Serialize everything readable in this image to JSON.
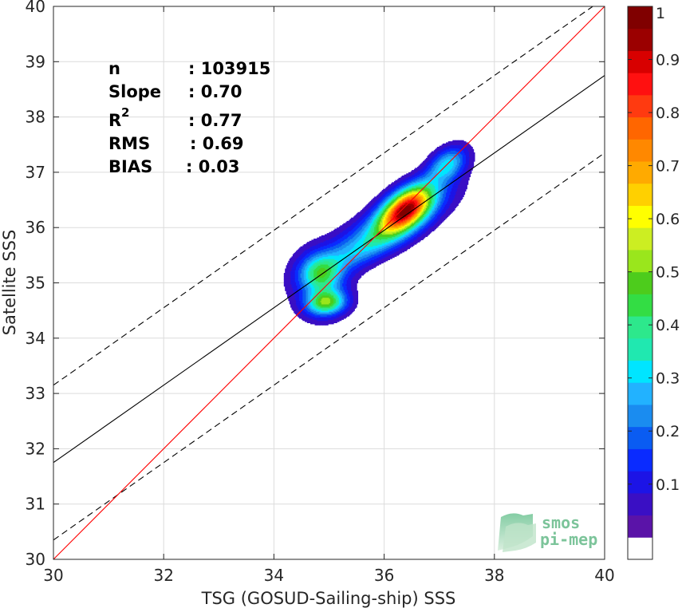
{
  "chart_data": {
    "type": "heatmap",
    "xlabel": "TSG (GOSUD-Sailing-ship) SSS",
    "ylabel": "Satellite SSS",
    "xlim": [
      30,
      40
    ],
    "ylim": [
      30,
      40
    ],
    "xticks": [
      "30",
      "32",
      "34",
      "36",
      "38",
      "40"
    ],
    "yticks": [
      "30",
      "31",
      "32",
      "33",
      "34",
      "35",
      "36",
      "37",
      "38",
      "39",
      "40"
    ],
    "grid": true,
    "stats": {
      "n_label": "n",
      "n_value": ": 103915",
      "slope_label": "Slope",
      "slope_value": ": 0.70",
      "r2_label": "R",
      "r2_sup": "2",
      "r2_value": ": 0.77",
      "rms_label": "RMS",
      "rms_value": ": 0.69",
      "bias_label": "BIAS",
      "bias_value": ": 0.03"
    },
    "lines": {
      "identity": {
        "slope": 1.0,
        "intercept": 0.0,
        "color": "#ff0000"
      },
      "regression": {
        "slope": 0.7,
        "intercept": 10.75,
        "color": "#000000"
      },
      "regression_upper": {
        "slope": 0.7,
        "intercept": 12.15,
        "style": "dashed"
      },
      "regression_lower": {
        "slope": 0.7,
        "intercept": 9.35,
        "style": "dashed"
      }
    },
    "density_peaks": [
      {
        "x": 36.4,
        "y": 36.35,
        "level": 1.0
      },
      {
        "x": 37.15,
        "y": 37.15,
        "level": 0.4
      },
      {
        "x": 34.95,
        "y": 34.65,
        "level": 0.55
      },
      {
        "x": 34.85,
        "y": 35.15,
        "level": 0.5
      }
    ],
    "colorbar": {
      "range": [
        0,
        1
      ],
      "levels": 24,
      "tick_labels": [
        "0.1",
        "0.2",
        "0.3",
        "0.4",
        "0.5",
        "0.6",
        "0.7",
        "0.8",
        "0.9",
        "1"
      ],
      "tick_values": [
        0.1,
        0.2,
        0.3,
        0.4,
        0.5,
        0.6,
        0.7,
        0.8,
        0.9,
        1.0
      ],
      "colors": [
        "#ffffff",
        "#5a13a8",
        "#3a0fc4",
        "#1c14e6",
        "#0a2bff",
        "#0a5cf2",
        "#1a8cf0",
        "#22b2ff",
        "#00e5ff",
        "#20e8b0",
        "#2de88c",
        "#33dd44",
        "#4dcc1c",
        "#9ae61c",
        "#ccee22",
        "#ffff00",
        "#ffd000",
        "#ffaa00",
        "#ff8800",
        "#ff6600",
        "#ff3a10",
        "#ff1010",
        "#d80000",
        "#9b0000",
        "#800000"
      ]
    }
  },
  "logo": {
    "line1": "smos",
    "line2": "pi-mep"
  }
}
